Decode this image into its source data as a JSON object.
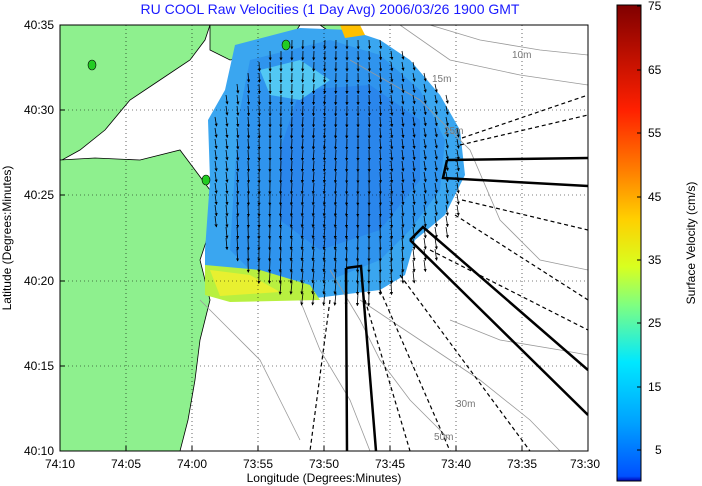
{
  "title": "RU COOL Raw Velocities (1 Day Avg) 2006/03/26 1900 GMT",
  "map": {
    "xlabel": "Longitude (Degrees:Minutes)",
    "ylabel": "Latitude (Degrees:Minutes)",
    "lon_ticks": [
      "74:10",
      "74:05",
      "74:00",
      "73:55",
      "73:50",
      "73:45",
      "73:40",
      "73:35",
      "73:30"
    ],
    "lat_ticks": [
      "40:35",
      "40:30",
      "40:25",
      "40:20",
      "40:15",
      "40:10"
    ],
    "lon_range_min": [
      -74.1667,
      -73.5
    ],
    "lat_range_min": [
      40.1667,
      40.5833
    ],
    "grid": "dotted",
    "land_color": "#8ef08e",
    "contour_labels": [
      "10m",
      "15m",
      "25m",
      "30m",
      "50m"
    ],
    "stations": 3,
    "station_color": "#22cc22"
  },
  "colorbar": {
    "label": "Surface Velocity (cm/s)",
    "ticks": [
      "75",
      "65",
      "55",
      "45",
      "35",
      "25",
      "15",
      "5"
    ],
    "range": [
      0,
      75
    ],
    "colormap": "jet"
  }
}
